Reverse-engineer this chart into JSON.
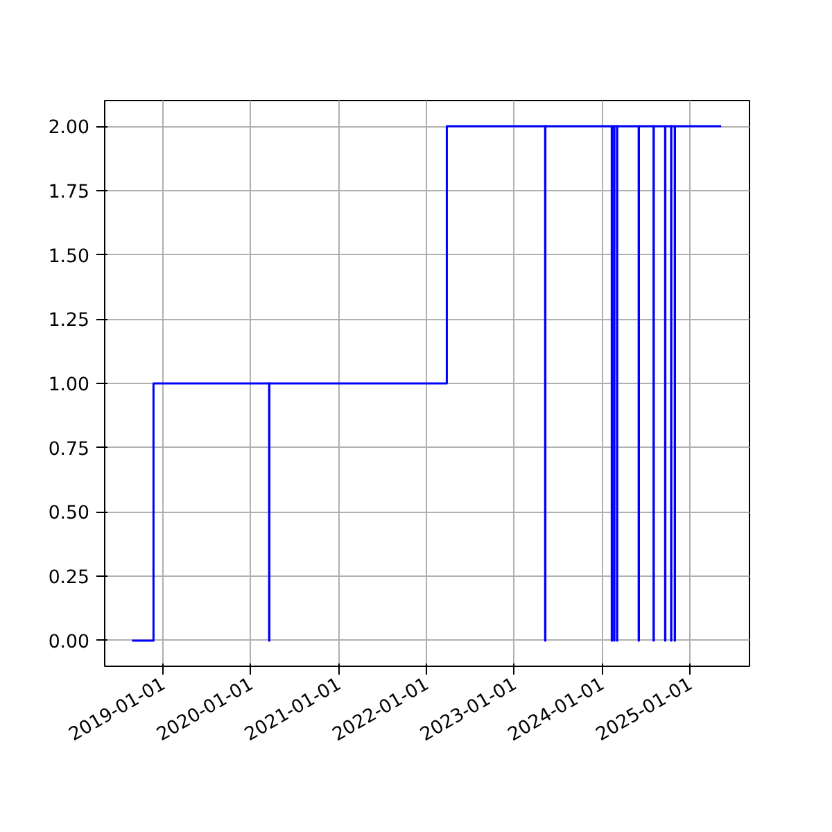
{
  "chart_data": {
    "type": "step",
    "color": "#0000ff",
    "grid": true,
    "line_style": "solid",
    "x": [
      "2018-08-25",
      "2018-11-22",
      "2020-03-17",
      "2020-03-18",
      "2022-03-26",
      "2023-05-09",
      "2023-05-10",
      "2024-02-10",
      "2024-02-11",
      "2024-02-20",
      "2024-02-21",
      "2024-03-03",
      "2024-03-04",
      "2024-06-01",
      "2024-06-02",
      "2024-08-02",
      "2024-08-03",
      "2024-09-19",
      "2024-09-20",
      "2024-10-14",
      "2024-10-15",
      "2024-10-29",
      "2024-10-30",
      "2025-05-10"
    ],
    "values": [
      0,
      1,
      0,
      1,
      2,
      0,
      2,
      0,
      2,
      0,
      2,
      0,
      2,
      0,
      2,
      0,
      2,
      0,
      2,
      0,
      2,
      0,
      2,
      2
    ],
    "xlim": [
      "2018-05-03",
      "2025-09-05"
    ],
    "xticks": [
      "2019-01-01",
      "2020-01-01",
      "2021-01-01",
      "2022-01-01",
      "2023-01-01",
      "2024-01-01",
      "2025-01-01"
    ],
    "ylim": [
      -0.1,
      2.1
    ],
    "yticks": [
      {
        "value": 0,
        "label": "0.00"
      },
      {
        "value": 0.25,
        "label": "0.25"
      },
      {
        "value": 0.5,
        "label": "0.50"
      },
      {
        "value": 0.75,
        "label": "0.75"
      },
      {
        "value": 1,
        "label": "1.00"
      },
      {
        "value": 1.25,
        "label": "1.25"
      },
      {
        "value": 1.5,
        "label": "1.50"
      },
      {
        "value": 1.75,
        "label": "1.75"
      },
      {
        "value": 2,
        "label": "2.00"
      }
    ]
  }
}
